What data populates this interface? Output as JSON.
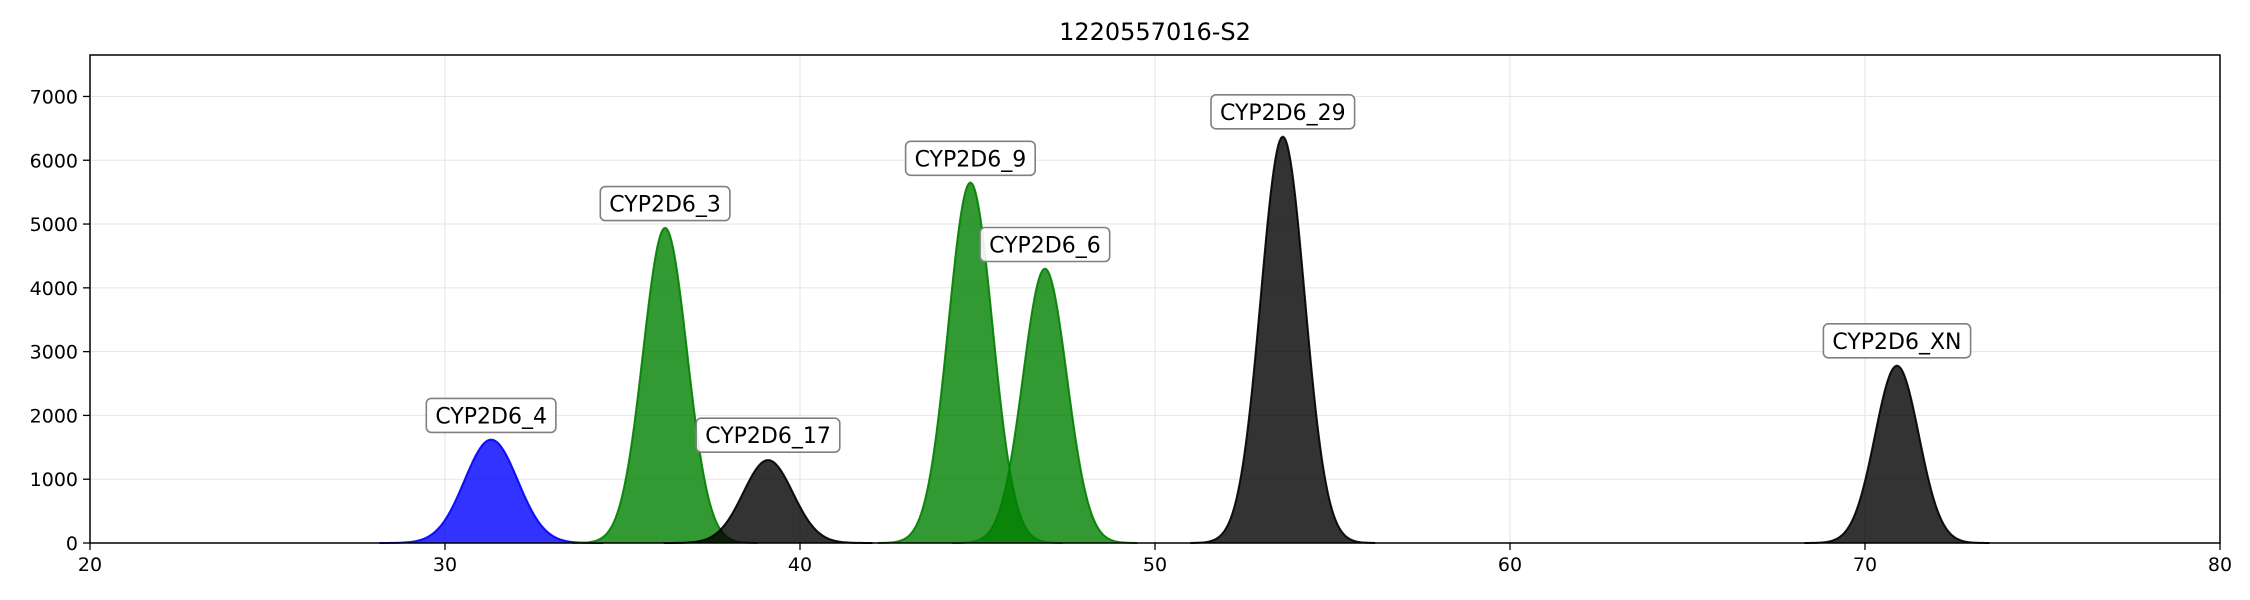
{
  "chart_data": {
    "type": "area",
    "title": "1220557016-S2",
    "xlabel": "",
    "ylabel": "",
    "xlim": [
      20,
      80
    ],
    "ylim": [
      0,
      7650
    ],
    "xticks": [
      20,
      30,
      40,
      50,
      60,
      70,
      80
    ],
    "yticks": [
      0,
      1000,
      2000,
      3000,
      4000,
      5000,
      6000,
      7000
    ],
    "grid": true,
    "legend": "none",
    "colors": {
      "blue": "#0000ff",
      "green": "#008000",
      "black": "#000000"
    },
    "peaks": [
      {
        "label": "CYP2D6_4",
        "center": 31.3,
        "height": 1620,
        "sigma": 0.75,
        "color": "#0000ff",
        "label_x": 31.3,
        "label_y": 2000
      },
      {
        "label": "CYP2D6_3",
        "center": 36.2,
        "height": 4940,
        "sigma": 0.62,
        "color": "#008000",
        "label_x": 36.2,
        "label_y": 5320
      },
      {
        "label": "CYP2D6_17",
        "center": 39.1,
        "height": 1300,
        "sigma": 0.7,
        "color": "#000000",
        "label_x": 39.1,
        "label_y": 1690
      },
      {
        "label": "CYP2D6_9",
        "center": 44.8,
        "height": 5650,
        "sigma": 0.62,
        "color": "#008000",
        "label_x": 44.8,
        "label_y": 6030
      },
      {
        "label": "CYP2D6_6",
        "center": 46.9,
        "height": 4300,
        "sigma": 0.62,
        "color": "#008000",
        "label_x": 46.9,
        "label_y": 4680
      },
      {
        "label": "CYP2D6_29",
        "center": 53.6,
        "height": 6370,
        "sigma": 0.62,
        "color": "#000000",
        "label_x": 53.6,
        "label_y": 6760
      },
      {
        "label": "CYP2D6_XN",
        "center": 70.9,
        "height": 2780,
        "sigma": 0.62,
        "color": "#000000",
        "label_x": 70.9,
        "label_y": 3170
      }
    ]
  }
}
